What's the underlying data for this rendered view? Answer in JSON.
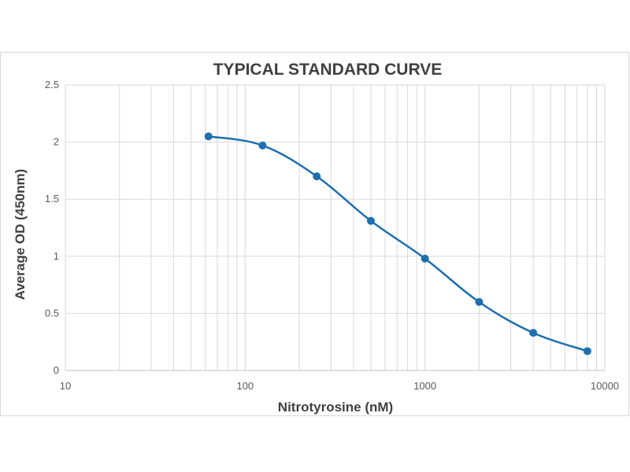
{
  "chart_data": {
    "type": "scatter",
    "title": "TYPICAL STANDARD CURVE",
    "xlabel": "Nitrotyrosine (nM)",
    "ylabel": "Average OD (450nm)",
    "x_scale": "log",
    "xlim": [
      10,
      10000
    ],
    "ylim": [
      0,
      2.5
    ],
    "x_ticks": [
      "10",
      "100",
      "1000",
      "10000"
    ],
    "y_ticks": [
      "0",
      "0.5",
      "1",
      "1.5",
      "2",
      "2.5"
    ],
    "grid": true,
    "legend": "none",
    "series": [
      {
        "color": "#1f6fae",
        "smooth": true,
        "x": [
          62.5,
          125,
          250,
          500,
          1000,
          2000,
          4000,
          8000
        ],
        "y": [
          2.05,
          1.97,
          1.7,
          1.31,
          0.98,
          0.6,
          0.33,
          0.17
        ]
      }
    ]
  }
}
